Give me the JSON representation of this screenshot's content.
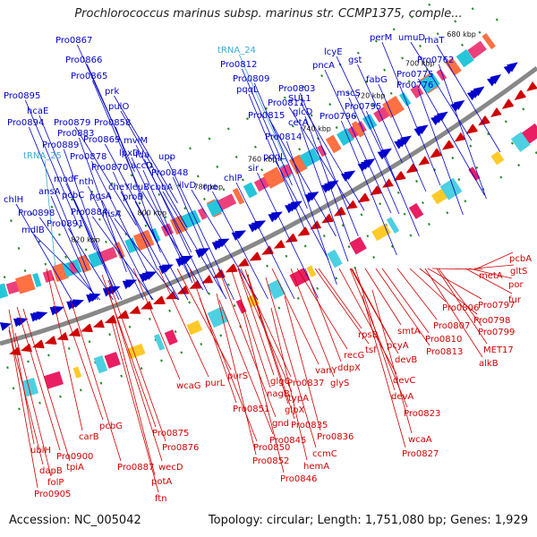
{
  "title": "Prochlorococcus marinus subsp. marinus str. CCMP1375, comple...",
  "accession_label": "Accession: NC_005042",
  "topology_label": "Topology: circular; Length: 1,751,080 bp; Genes: 1,929",
  "colors": {
    "forward": "#0000cc",
    "trna": "#3fa9d6",
    "reverse": "#d00000",
    "backbone": "#888888"
  },
  "tick_labels": [
    "680 kbp",
    "700 kbp",
    "720 kbp",
    "740 kbp",
    "760 kbp",
    "780 kbp",
    "800 kbp",
    "820 kbp"
  ],
  "forward_genes": [
    "Pro0867",
    "Pro0866",
    "Pro0865",
    "Pro0895",
    "hcaE",
    "Pro0894",
    "Pro0879",
    "prk",
    "pulO",
    "Pro0858",
    "Pro0883",
    "Pro0889",
    "Pro0869",
    "mviM",
    "Pro0878",
    "lpxD",
    "fda",
    "upp",
    "Pro0870",
    "accD",
    "Pro0848",
    "modF",
    "nth",
    "cheY",
    "leuB",
    "cbbA",
    "ilvD",
    "ansA",
    "pcbC",
    "pgsA",
    "proB",
    "chlH",
    "Pro0898",
    "Pro0884",
    "hisA",
    "mdlB",
    "Pro0891",
    "tRNA_24",
    "Pro0812",
    "Pro0809",
    "pqqL",
    "Pro0803",
    "Pro0811",
    "SUL1",
    "Pro0815",
    "glcD",
    "cetA",
    "Pro0814",
    "pqqL",
    "rpe",
    "chlP",
    "sir",
    "lcyE",
    "pncA",
    "gst",
    "fabG",
    "mscS",
    "Pro0795",
    "Pro0796",
    "perM",
    "umuD",
    "rhaT",
    "Pro0775",
    "Pro0776",
    "Pro0762"
  ],
  "trna_genes": [
    "tRNA_24",
    "tRNA_25"
  ],
  "reverse_genes": [
    "pcbA",
    "gltS",
    "por",
    "fur",
    "metA",
    "Pro0797",
    "Pro0798",
    "Pro0806",
    "Pro0807",
    "Pro0799",
    "Pro0810",
    "MET17",
    "Pro0813",
    "alkB",
    "smtA",
    "pcyA",
    "rpsB",
    "devB",
    "recG",
    "tsf",
    "devC",
    "ddpX",
    "devA",
    "glyS",
    "vanY",
    "Pro0837",
    "typA",
    "Pro0823",
    "glgC",
    "nagB",
    "glpX",
    "Pro0835",
    "purL",
    "purS",
    "gnd",
    "Pro0836",
    "wcaA",
    "Pro0827",
    "Pro0851",
    "ccmC",
    "Pro0845",
    "Pro0850",
    "hemA",
    "Pro0852",
    "Pro0846",
    "wcaG",
    "pcbG",
    "Pro0875",
    "Pro0876",
    "carB",
    "ubiH",
    "Pro0900",
    "tpiA",
    "Pro0887",
    "wecD",
    "dapB",
    "folP",
    "potA",
    "Pro0905",
    "ftn"
  ]
}
